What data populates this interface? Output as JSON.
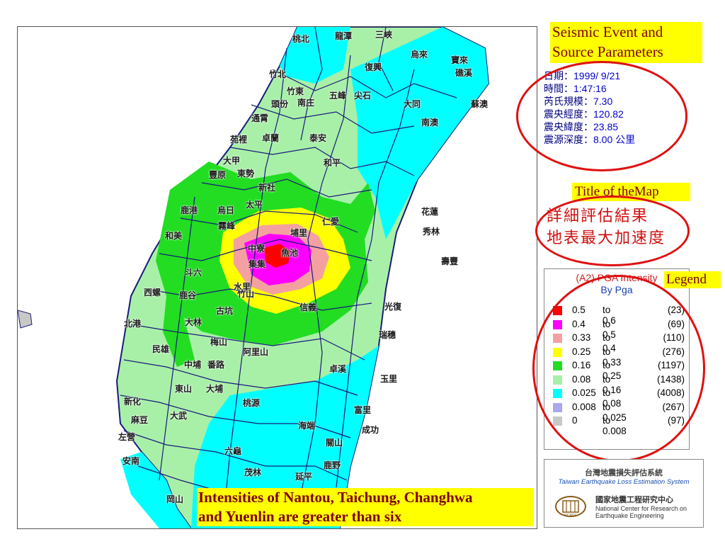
{
  "seismic_title": "Seismic Event and Source Parameters",
  "seismic_params": [
    {
      "label": "日期：",
      "value": "1999/ 9/21"
    },
    {
      "label": "時間：",
      "value": "1:47:16"
    },
    {
      "label": "芮氏規模：",
      "value": "7.30"
    },
    {
      "label": "震央經度：",
      "value": "120.82"
    },
    {
      "label": "震央緯度：",
      "value": "23.85"
    },
    {
      "label": "震源深度：",
      "value": "8.00 公里"
    }
  ],
  "map_title_label": "Title of theMap",
  "map_title_line1": "詳細評估結果",
  "map_title_line2": "地表最大加速度",
  "legend": {
    "title": "(A2) PGA Intensity",
    "subtitle": "By Pga",
    "label": "Legend",
    "rows": [
      {
        "lo": "0.5",
        "to": "to 0.6",
        "count": "(23)",
        "color": "#ff0000"
      },
      {
        "lo": "0.4",
        "to": "to 0.5",
        "count": "(69)",
        "color": "#ff00ff"
      },
      {
        "lo": "0.33",
        "to": "to 0.4",
        "count": "(110)",
        "color": "#f4a0a0"
      },
      {
        "lo": "0.25",
        "to": "to 0.33",
        "count": "(276)",
        "color": "#ffff00"
      },
      {
        "lo": "0.16",
        "to": "to 0.25",
        "count": "(1197)",
        "color": "#22dd22"
      },
      {
        "lo": "0.08",
        "to": "to 0.16",
        "count": "(1438)",
        "color": "#a8f0a8"
      },
      {
        "lo": "0.025",
        "to": "to 0.08",
        "count": "(4008)",
        "color": "#00ffff"
      },
      {
        "lo": "0.008",
        "to": "to 0.025",
        "count": "(267)",
        "color": "#a8a8f0"
      },
      {
        "lo": "0",
        "to": "to 0.008",
        "count": "(97)",
        "color": "#c8c8c8"
      }
    ]
  },
  "logo": {
    "system_cn": "台灣地震損失評估系統",
    "system_en": "Taiwan Earthquake Loss Estimation System",
    "inst_cn": "國家地震工程研究中心",
    "inst_en_line1": "National Center for Research on",
    "inst_en_line2": "Earthquake Engineering",
    "emblem_text": "NCREE"
  },
  "bottom_note_line1": "Intensities of Nantou, Taichung, Changhwa",
  "bottom_note_line2": "and Yuenlin are greater than six",
  "map_labels": [
    "桃北",
    "龍潭",
    "三峽",
    "烏來",
    "寶來",
    "礁溪",
    "竹北",
    "竹東",
    "復興",
    "五峰",
    "尖石",
    "大同",
    "蘇澳",
    "頭份",
    "南庄",
    "通霄",
    "苑裡",
    "卓蘭",
    "泰安",
    "南澳",
    "新社",
    "和平",
    "豐原",
    "東勢",
    "大甲",
    "鹿港",
    "烏日",
    "太平",
    "仁愛",
    "花蓮",
    "和美",
    "霧峰",
    "埔里",
    "秀林",
    "中寮",
    "魚池",
    "集集",
    "水里",
    "信義",
    "竹山",
    "古坑",
    "鹿谷",
    "斗六",
    "壽豐",
    "光復",
    "西螺",
    "北港",
    "大林",
    "梅山",
    "瑞穗",
    "阿里山",
    "卓溪",
    "民雄",
    "中埔",
    "東山",
    "番路",
    "大埔",
    "玉里",
    "富里",
    "新化",
    "成功",
    "桃源",
    "海端",
    "六龜",
    "茂林",
    "延平",
    "鹿野",
    "左營",
    "岡山",
    "大武",
    "關山",
    "麻豆",
    "安南"
  ]
}
